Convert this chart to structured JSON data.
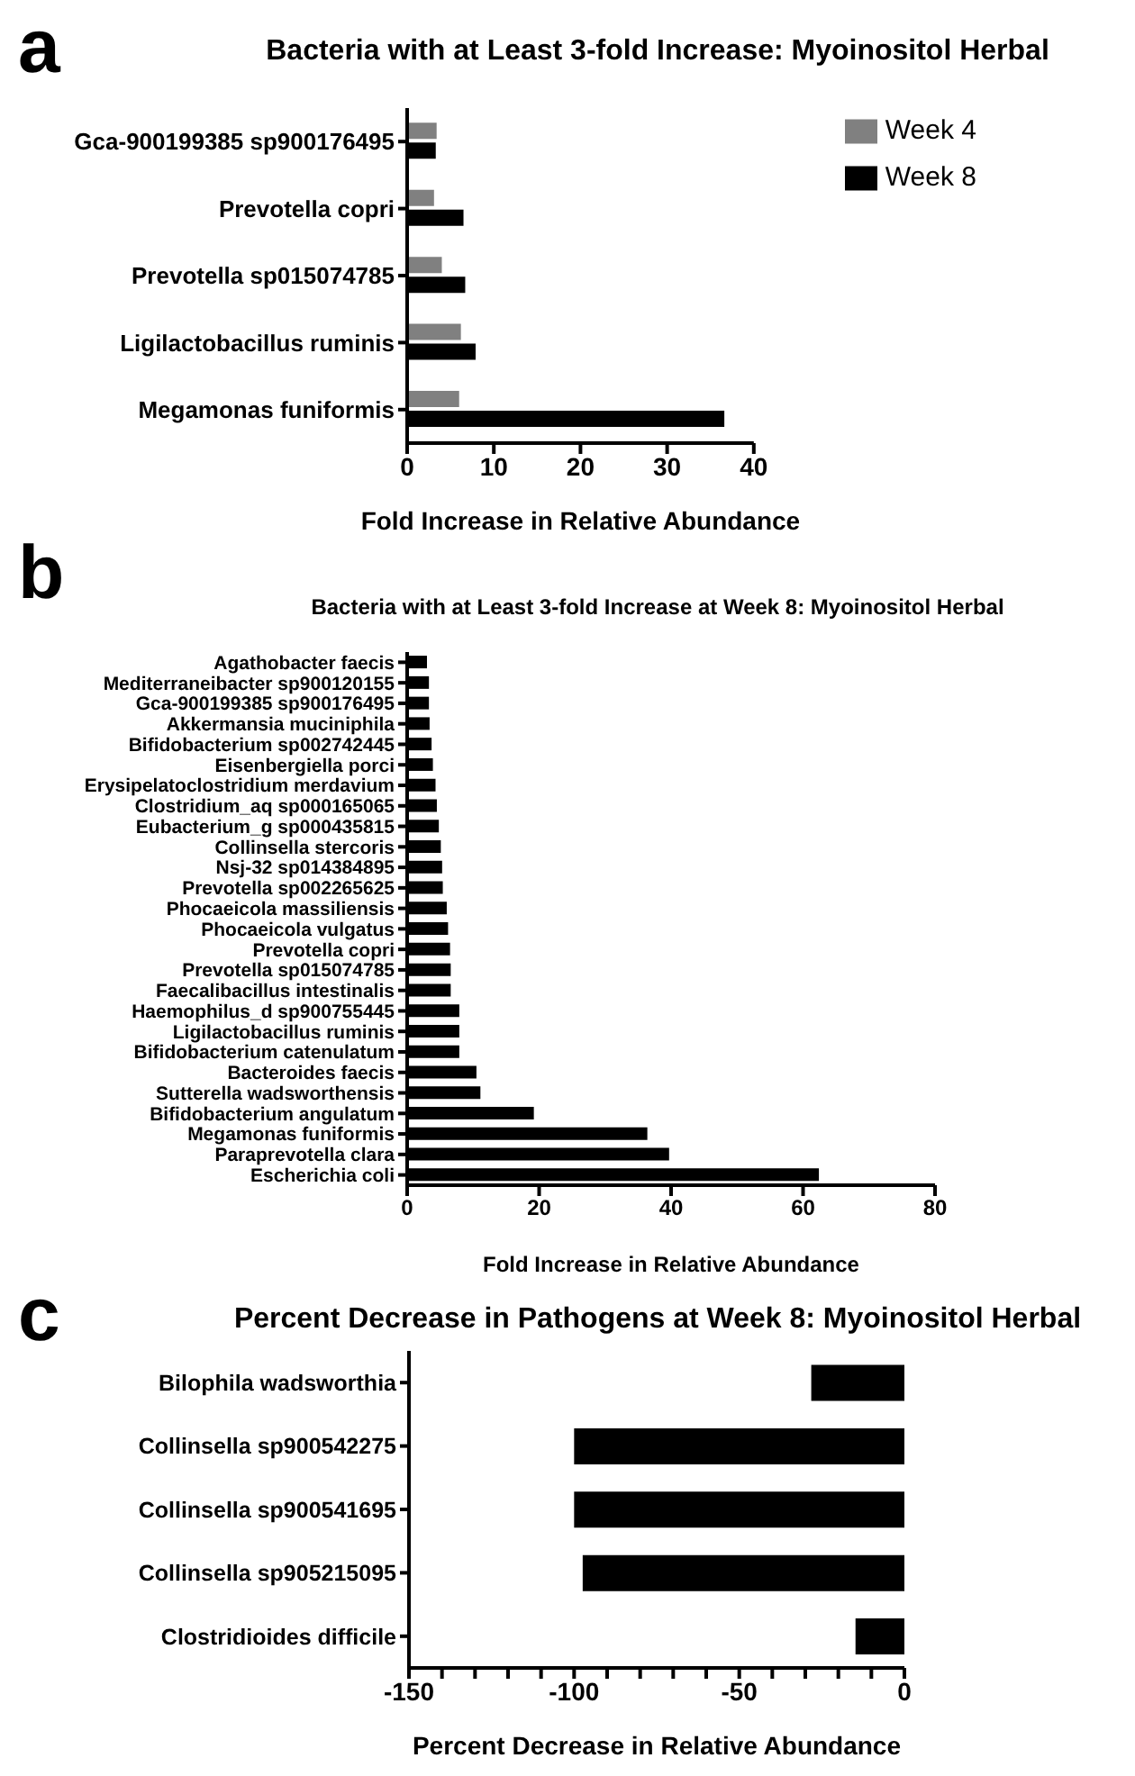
{
  "chart_data": [
    {
      "type": "bar",
      "orientation": "horizontal",
      "title": "Bacteria with at Least 3-fold Increase: Myoinositol Herbal",
      "xlabel": "Fold Increase in Relative Abundance",
      "annotations": [
        "a"
      ],
      "categories": [
        "Gca-900199385 sp900176495",
        "Prevotella copri",
        "Prevotella sp015074785",
        "Ligilactobacillus ruminis",
        "Megamonas funiformis"
      ],
      "series": [
        {
          "name": "Week 4",
          "color": "#808080",
          "values": [
            3.4,
            3.1,
            4.0,
            6.2,
            6.0
          ]
        },
        {
          "name": "Week 8",
          "color": "#000000",
          "values": [
            3.3,
            6.5,
            6.7,
            7.9,
            36.6
          ]
        }
      ],
      "xlim": [
        0,
        40
      ],
      "xticks": [
        0,
        10,
        20,
        30,
        40
      ],
      "legend": "top right",
      "grid": false
    },
    {
      "type": "bar",
      "orientation": "horizontal",
      "title": "Bacteria with at Least 3-fold Increase at Week 8: Myoinositol Herbal",
      "xlabel": "Fold Increase in Relative Abundance",
      "annotations": [
        "b"
      ],
      "categories": [
        "Agathobacter faecis",
        "Mediterraneibacter sp900120155",
        "Gca-900199385 sp900176495",
        "Akkermansia muciniphila",
        "Bifidobacterium sp002742445",
        "Eisenbergiella porci",
        "Erysipelatoclostridium merdavium",
        "Clostridium_aq sp000165065",
        "Eubacterium_g sp000435815",
        "Collinsella stercoris",
        "Nsj-32 sp014384895",
        "Prevotella sp002265625",
        "Phocaeicola massiliensis",
        "Phocaeicola vulgatus",
        "Prevotella copri",
        "Prevotella sp015074785",
        "Faecalibacillus intestinalis",
        "Haemophilus_d sp900755445",
        "Ligilactobacillus ruminis",
        "Bifidobacterium catenulatum",
        "Bacteroides faecis",
        "Sutterella wadsworthensis",
        "Bifidobacterium angulatum",
        "Megamonas funiformis",
        "Paraprevotella clara",
        "Escherichia coli"
      ],
      "values": [
        3.0,
        3.3,
        3.3,
        3.4,
        3.7,
        3.9,
        4.3,
        4.5,
        4.8,
        5.1,
        5.3,
        5.4,
        6.0,
        6.2,
        6.5,
        6.6,
        6.6,
        7.9,
        7.9,
        7.9,
        10.5,
        11.1,
        19.2,
        36.4,
        39.7,
        62.4
      ],
      "color": "#000000",
      "xlim": [
        0,
        80
      ],
      "xticks": [
        0,
        20,
        40,
        60,
        80
      ],
      "grid": false
    },
    {
      "type": "bar",
      "orientation": "horizontal",
      "title": "Percent Decrease in Pathogens at Week 8: Myoinositol Herbal",
      "xlabel": "Percent Decrease in Relative Abundance",
      "annotations": [
        "c"
      ],
      "categories": [
        "Bilophila wadsworthia",
        "Collinsella sp900542275",
        "Collinsella sp900541695",
        "Collinsella sp905215095",
        "Clostridioides difficile"
      ],
      "values": [
        -28.2,
        -100,
        -100,
        -97.4,
        -14.8
      ],
      "color": "#000000",
      "xlim": [
        -150,
        0
      ],
      "xticks": [
        -150,
        {
          "value": -140,
          "label": null
        },
        {
          "value": -130,
          "label": null
        },
        {
          "value": -120,
          "label": null
        },
        {
          "value": -110,
          "label": null
        },
        -100,
        {
          "value": -90,
          "label": null
        },
        {
          "value": -80,
          "label": null
        },
        {
          "value": -70,
          "label": null
        },
        {
          "value": -60,
          "label": null
        },
        -50,
        {
          "value": -40,
          "label": null
        },
        {
          "value": -30,
          "label": null
        },
        {
          "value": -20,
          "label": null
        },
        {
          "value": -10,
          "label": null
        },
        0
      ],
      "grid": false
    }
  ]
}
